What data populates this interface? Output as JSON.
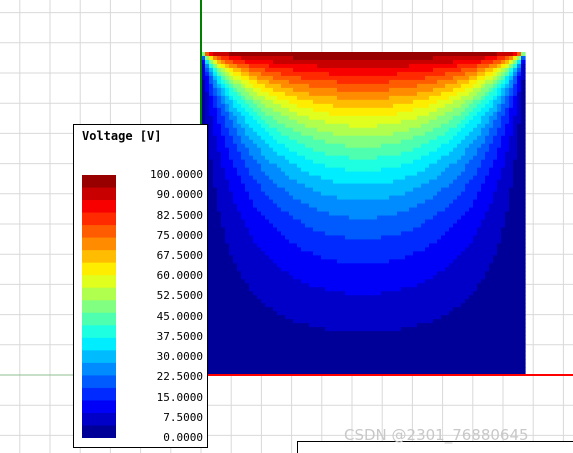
{
  "legend": {
    "title": "Voltage [V]",
    "labels": [
      "100.0000",
      "90.0000",
      "82.5000",
      "75.0000",
      "67.5000",
      "60.0000",
      "52.5000",
      "45.0000",
      "37.5000",
      "30.0000",
      "22.5000",
      "15.0000",
      "7.5000",
      "0.0000"
    ],
    "min": 0,
    "max": 100,
    "bands": 21
  },
  "field": {
    "quantity": "Voltage",
    "unit": "V",
    "top_boundary_value": 100,
    "other_boundaries_value": 0,
    "contour_levels": 21
  },
  "axes": {
    "x_axis_color": "#ff0000",
    "y_axis_color": "#008000"
  },
  "colors": {
    "grid": "#d9d9d9",
    "origin_marker": "#4a7fd9"
  },
  "watermark": {
    "text": "CSDN @2301_76880645"
  }
}
